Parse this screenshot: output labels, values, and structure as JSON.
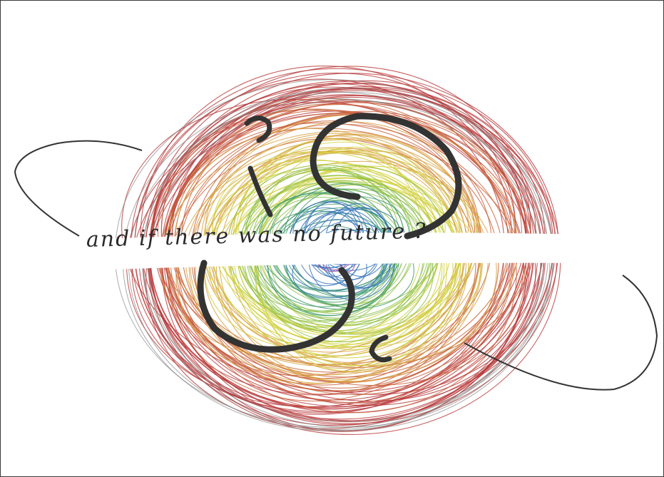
{
  "artwork": {
    "caption": "and if there was no future ?",
    "ring_colors": [
      "#b8383a",
      "#c8603a",
      "#d8a040",
      "#cfcf3a",
      "#8cc04a",
      "#3f9a6a",
      "#2f6fb8",
      "#a0449a"
    ],
    "ink_color": "#333333",
    "background": "#ffffff"
  }
}
